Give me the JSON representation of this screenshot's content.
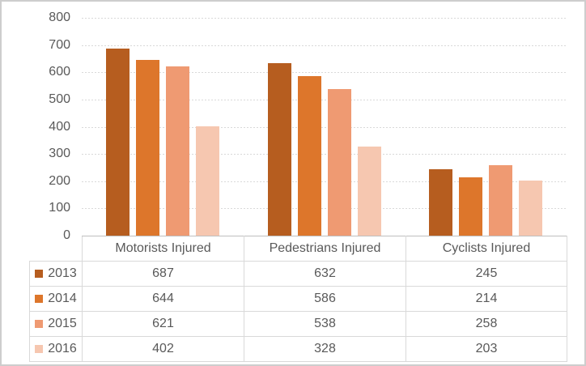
{
  "chart_data": {
    "type": "bar",
    "title": "",
    "xlabel": "",
    "ylabel": "",
    "categories": [
      "Motorists Injured",
      "Pedestrians Injured",
      "Cyclists Injured"
    ],
    "series": [
      {
        "name": "2013",
        "color": "#B65D1F",
        "values": [
          687,
          632,
          245
        ]
      },
      {
        "name": "2014",
        "color": "#DD762B",
        "values": [
          644,
          586,
          214
        ]
      },
      {
        "name": "2015",
        "color": "#EF9A72",
        "values": [
          621,
          538,
          258
        ]
      },
      {
        "name": "2016",
        "color": "#F6C7B0",
        "values": [
          402,
          328,
          203
        ]
      }
    ],
    "ylim": [
      0,
      800
    ],
    "y_ticks": [
      0,
      100,
      200,
      300,
      400,
      500,
      600,
      700,
      800
    ],
    "gridlines": "horizontal-dashed",
    "legend_position": "data-table-left-column"
  },
  "colors": {
    "text": "#595959",
    "gridline": "#D9D9D9",
    "axis_line": "#BFBFBF",
    "table_border": "#D9D9D9",
    "frame_border": "#CDCDCD",
    "background": "#FFFFFF"
  }
}
